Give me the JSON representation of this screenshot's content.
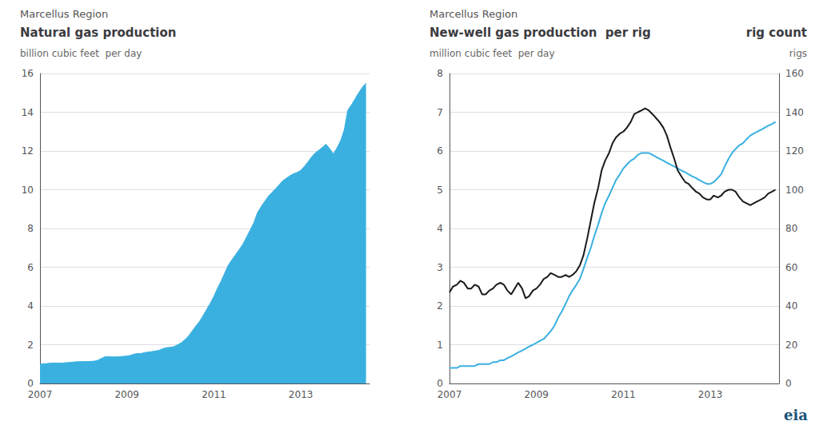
{
  "chart_data": [
    {
      "type": "area",
      "subtitle": "Marcellus Region",
      "title": "Natural gas production",
      "ylabel": "billion cubic feet  per day",
      "color": "#3ab0e0",
      "grid": true,
      "xlim": [
        2007.0,
        2014.58
      ],
      "xticks": [
        2007,
        2009,
        2011,
        2013
      ],
      "ylim": [
        0,
        16
      ],
      "yticks": [
        0,
        2,
        4,
        6,
        8,
        10,
        12,
        14,
        16
      ],
      "x": [
        2007.0,
        2007.08,
        2007.17,
        2007.25,
        2007.33,
        2007.42,
        2007.5,
        2007.58,
        2007.67,
        2007.75,
        2007.83,
        2007.92,
        2008.0,
        2008.08,
        2008.17,
        2008.25,
        2008.33,
        2008.42,
        2008.5,
        2008.58,
        2008.67,
        2008.75,
        2008.83,
        2008.92,
        2009.0,
        2009.08,
        2009.17,
        2009.25,
        2009.33,
        2009.42,
        2009.5,
        2009.58,
        2009.67,
        2009.75,
        2009.83,
        2009.92,
        2010.0,
        2010.08,
        2010.17,
        2010.25,
        2010.33,
        2010.42,
        2010.5,
        2010.58,
        2010.67,
        2010.75,
        2010.83,
        2010.92,
        2011.0,
        2011.08,
        2011.17,
        2011.25,
        2011.33,
        2011.42,
        2011.5,
        2011.58,
        2011.67,
        2011.75,
        2011.83,
        2011.92,
        2012.0,
        2012.08,
        2012.17,
        2012.25,
        2012.33,
        2012.42,
        2012.5,
        2012.58,
        2012.67,
        2012.75,
        2012.83,
        2012.92,
        2013.0,
        2013.08,
        2013.17,
        2013.25,
        2013.33,
        2013.42,
        2013.5,
        2013.58,
        2013.67,
        2013.75,
        2013.83,
        2013.92,
        2014.0,
        2014.08,
        2014.17,
        2014.25,
        2014.33,
        2014.42,
        2014.5
      ],
      "values": [
        1.0,
        1.02,
        1.03,
        1.05,
        1.06,
        1.05,
        1.05,
        1.07,
        1.08,
        1.1,
        1.12,
        1.12,
        1.13,
        1.13,
        1.14,
        1.15,
        1.2,
        1.3,
        1.38,
        1.38,
        1.37,
        1.37,
        1.38,
        1.4,
        1.42,
        1.45,
        1.52,
        1.55,
        1.55,
        1.6,
        1.62,
        1.65,
        1.68,
        1.72,
        1.8,
        1.85,
        1.87,
        1.9,
        2.0,
        2.1,
        2.25,
        2.45,
        2.7,
        2.95,
        3.2,
        3.5,
        3.8,
        4.15,
        4.5,
        4.9,
        5.3,
        5.7,
        6.1,
        6.4,
        6.65,
        6.9,
        7.2,
        7.55,
        7.9,
        8.3,
        8.8,
        9.1,
        9.4,
        9.65,
        9.85,
        10.05,
        10.25,
        10.45,
        10.6,
        10.72,
        10.82,
        10.9,
        11.0,
        11.2,
        11.45,
        11.7,
        11.9,
        12.05,
        12.2,
        12.35,
        12.1,
        11.85,
        12.15,
        12.55,
        13.1,
        14.1,
        14.4,
        14.7,
        15.0,
        15.3,
        15.5
      ]
    },
    {
      "type": "line",
      "subtitle": "Marcellus Region",
      "title": "New-well gas production  per rig",
      "ylabel": "million cubic feet  per day",
      "y2title": "rig count",
      "y2label": "rigs",
      "annotations": [
        "eia"
      ],
      "grid": true,
      "xlim": [
        2007.0,
        2014.58
      ],
      "xticks": [
        2007,
        2009,
        2011,
        2013
      ],
      "ylim": [
        0,
        8
      ],
      "yticks": [
        0,
        1,
        2,
        3,
        4,
        5,
        6,
        7,
        8
      ],
      "y2lim": [
        0,
        160
      ],
      "y2ticks": [
        0,
        20,
        40,
        60,
        80,
        100,
        120,
        140,
        160
      ],
      "x": [
        2007.0,
        2007.08,
        2007.17,
        2007.25,
        2007.33,
        2007.42,
        2007.5,
        2007.58,
        2007.67,
        2007.75,
        2007.83,
        2007.92,
        2008.0,
        2008.08,
        2008.17,
        2008.25,
        2008.33,
        2008.42,
        2008.5,
        2008.58,
        2008.67,
        2008.75,
        2008.83,
        2008.92,
        2009.0,
        2009.08,
        2009.17,
        2009.25,
        2009.33,
        2009.42,
        2009.5,
        2009.58,
        2009.67,
        2009.75,
        2009.83,
        2009.92,
        2010.0,
        2010.08,
        2010.17,
        2010.25,
        2010.33,
        2010.42,
        2010.5,
        2010.58,
        2010.67,
        2010.75,
        2010.83,
        2010.92,
        2011.0,
        2011.08,
        2011.17,
        2011.25,
        2011.33,
        2011.42,
        2011.5,
        2011.58,
        2011.67,
        2011.75,
        2011.83,
        2011.92,
        2012.0,
        2012.08,
        2012.17,
        2012.25,
        2012.33,
        2012.42,
        2012.5,
        2012.58,
        2012.67,
        2012.75,
        2012.83,
        2012.92,
        2013.0,
        2013.08,
        2013.17,
        2013.25,
        2013.33,
        2013.42,
        2013.5,
        2013.58,
        2013.67,
        2013.75,
        2013.83,
        2013.92,
        2014.0,
        2014.08,
        2014.17,
        2014.25,
        2014.33,
        2014.42,
        2014.5
      ],
      "series": [
        {
          "color": "#3ab0e0",
          "axis": "y2",
          "values": [
            8,
            8,
            8,
            9,
            9,
            9,
            9,
            9,
            10,
            10,
            10,
            10,
            11,
            11,
            12,
            12,
            13,
            14,
            15,
            16,
            17,
            18,
            19,
            20,
            21,
            22,
            23,
            25,
            27,
            30,
            34,
            37,
            41,
            45,
            48,
            51,
            54,
            59,
            65,
            70,
            76,
            82,
            88,
            93,
            97,
            101,
            105,
            108,
            111,
            113,
            115,
            116,
            118,
            119,
            119,
            119,
            118,
            117,
            116,
            115,
            114,
            113,
            112,
            111,
            110,
            109,
            108,
            107,
            106,
            105,
            104,
            103,
            103,
            104,
            106,
            108,
            112,
            116,
            119,
            121,
            123,
            124,
            126,
            128,
            129,
            130,
            131,
            132,
            133,
            134,
            135
          ]
        },
        {
          "color": "#1a1a1a",
          "values": [
            2.35,
            2.5,
            2.55,
            2.65,
            2.6,
            2.45,
            2.45,
            2.55,
            2.5,
            2.3,
            2.3,
            2.4,
            2.45,
            2.55,
            2.6,
            2.55,
            2.4,
            2.3,
            2.45,
            2.6,
            2.45,
            2.2,
            2.25,
            2.4,
            2.45,
            2.55,
            2.7,
            2.75,
            2.85,
            2.8,
            2.75,
            2.75,
            2.8,
            2.75,
            2.8,
            2.9,
            3.05,
            3.3,
            3.75,
            4.2,
            4.65,
            5.05,
            5.5,
            5.75,
            5.95,
            6.2,
            6.35,
            6.45,
            6.5,
            6.6,
            6.75,
            6.95,
            7.0,
            7.05,
            7.1,
            7.05,
            6.95,
            6.85,
            6.75,
            6.6,
            6.4,
            6.1,
            5.8,
            5.5,
            5.35,
            5.2,
            5.15,
            5.05,
            4.95,
            4.9,
            4.8,
            4.75,
            4.75,
            4.85,
            4.8,
            4.85,
            4.95,
            5.0,
            5.0,
            4.95,
            4.8,
            4.7,
            4.65,
            4.6,
            4.65,
            4.7,
            4.75,
            4.8,
            4.9,
            4.95,
            5.0
          ]
        }
      ]
    }
  ]
}
